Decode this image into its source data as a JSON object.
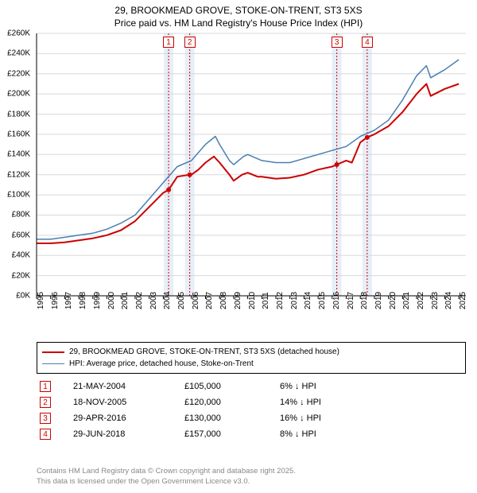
{
  "title": {
    "line1": "29, BROOKMEAD GROVE, STOKE-ON-TRENT, ST3 5XS",
    "line2": "Price paid vs. HM Land Registry's House Price Index (HPI)",
    "fontsize": 12,
    "color": "#000000"
  },
  "chart": {
    "type": "line",
    "background_color": "#ffffff",
    "grid_color": "#d9d9d9",
    "grid_major_y": true,
    "x_years": [
      1995,
      1996,
      1997,
      1998,
      1999,
      2000,
      2001,
      2002,
      2003,
      2004,
      2005,
      2006,
      2007,
      2008,
      2009,
      2010,
      2011,
      2012,
      2013,
      2014,
      2015,
      2016,
      2017,
      2018,
      2019,
      2020,
      2021,
      2022,
      2023,
      2024,
      2025
    ],
    "x_domain": [
      1995,
      2025.5
    ],
    "ylim": [
      0,
      260000
    ],
    "ytick_step": 20000,
    "y_tick_prefix": "£",
    "y_tick_suffix": "K",
    "axis_color": "#000000",
    "label_fontsize": 10,
    "series": [
      {
        "name": "29, BROOKMEAD GROVE, STOKE-ON-TRENT, ST3 5XS (detached house)",
        "color": "#cc0000",
        "line_width": 2,
        "points": [
          [
            1995,
            52000
          ],
          [
            1996,
            52000
          ],
          [
            1997,
            53000
          ],
          [
            1998,
            55000
          ],
          [
            1999,
            57000
          ],
          [
            2000,
            60000
          ],
          [
            2001,
            65000
          ],
          [
            2002,
            74000
          ],
          [
            2003,
            88000
          ],
          [
            2004,
            102000
          ],
          [
            2004.38,
            105000
          ],
          [
            2005,
            118000
          ],
          [
            2005.88,
            120000
          ],
          [
            2006,
            120000
          ],
          [
            2006.5,
            125000
          ],
          [
            2007,
            132000
          ],
          [
            2007.6,
            138000
          ],
          [
            2008,
            132000
          ],
          [
            2008.7,
            120000
          ],
          [
            2009,
            114000
          ],
          [
            2009.6,
            120000
          ],
          [
            2010,
            122000
          ],
          [
            2010.7,
            118000
          ],
          [
            2011,
            118000
          ],
          [
            2012,
            116000
          ],
          [
            2013,
            117000
          ],
          [
            2014,
            120000
          ],
          [
            2015,
            125000
          ],
          [
            2016,
            128000
          ],
          [
            2016.33,
            130000
          ],
          [
            2017,
            134000
          ],
          [
            2017.4,
            132000
          ],
          [
            2018,
            152000
          ],
          [
            2018.49,
            157000
          ],
          [
            2019,
            160000
          ],
          [
            2020,
            168000
          ],
          [
            2021,
            182000
          ],
          [
            2022,
            200000
          ],
          [
            2022.7,
            210000
          ],
          [
            2023,
            198000
          ],
          [
            2024,
            205000
          ],
          [
            2025,
            210000
          ]
        ]
      },
      {
        "name": "HPI: Average price, detached house, Stoke-on-Trent",
        "color": "#4a7fb0",
        "line_width": 1.5,
        "points": [
          [
            1995,
            56000
          ],
          [
            1996,
            56000
          ],
          [
            1997,
            58000
          ],
          [
            1998,
            60000
          ],
          [
            1999,
            62000
          ],
          [
            2000,
            66000
          ],
          [
            2001,
            72000
          ],
          [
            2002,
            80000
          ],
          [
            2003,
            96000
          ],
          [
            2004,
            112000
          ],
          [
            2005,
            128000
          ],
          [
            2006,
            134000
          ],
          [
            2007,
            150000
          ],
          [
            2007.7,
            158000
          ],
          [
            2008,
            150000
          ],
          [
            2008.7,
            134000
          ],
          [
            2009,
            130000
          ],
          [
            2009.7,
            138000
          ],
          [
            2010,
            140000
          ],
          [
            2011,
            134000
          ],
          [
            2012,
            132000
          ],
          [
            2013,
            132000
          ],
          [
            2014,
            136000
          ],
          [
            2015,
            140000
          ],
          [
            2016,
            144000
          ],
          [
            2017,
            148000
          ],
          [
            2018,
            158000
          ],
          [
            2019,
            164000
          ],
          [
            2020,
            174000
          ],
          [
            2021,
            194000
          ],
          [
            2022,
            218000
          ],
          [
            2022.7,
            228000
          ],
          [
            2023,
            216000
          ],
          [
            2024,
            224000
          ],
          [
            2025,
            234000
          ]
        ]
      }
    ],
    "sale_markers": [
      {
        "n": "1",
        "x": 2004.38,
        "y": 105000,
        "band_color": "#e8eef7",
        "line_color": "#cc0000"
      },
      {
        "n": "2",
        "x": 2005.88,
        "y": 120000,
        "band_color": "#e8eef7",
        "line_color": "#cc0000"
      },
      {
        "n": "3",
        "x": 2016.33,
        "y": 130000,
        "band_color": "#e8eef7",
        "line_color": "#cc0000"
      },
      {
        "n": "4",
        "x": 2018.49,
        "y": 157000,
        "band_color": "#e8eef7",
        "line_color": "#cc0000"
      }
    ],
    "marker_border_color": "#cc0000",
    "marker_dot_radius": 3
  },
  "legend": {
    "border_color": "#000000",
    "fontsize": 10,
    "items": [
      {
        "color": "#cc0000",
        "width": 2,
        "label": "29, BROOKMEAD GROVE, STOKE-ON-TRENT, ST3 5XS (detached house)"
      },
      {
        "color": "#4a7fb0",
        "width": 1.5,
        "label": "HPI: Average price, detached house, Stoke-on-Trent"
      }
    ]
  },
  "sales_table": {
    "marker_border_color": "#cc0000",
    "fontsize": 11,
    "rows": [
      {
        "n": "1",
        "date": "21-MAY-2004",
        "price": "£105,000",
        "diff": "6% ↓ HPI"
      },
      {
        "n": "2",
        "date": "18-NOV-2005",
        "price": "£120,000",
        "diff": "14% ↓ HPI"
      },
      {
        "n": "3",
        "date": "29-APR-2016",
        "price": "£130,000",
        "diff": "16% ↓ HPI"
      },
      {
        "n": "4",
        "date": "29-JUN-2018",
        "price": "£157,000",
        "diff": "8% ↓ HPI"
      }
    ]
  },
  "footer": {
    "line1": "Contains HM Land Registry data © Crown copyright and database right 2025.",
    "line2": "This data is licensed under the Open Government Licence v3.0.",
    "color": "#888888",
    "fontsize": 9.5
  }
}
